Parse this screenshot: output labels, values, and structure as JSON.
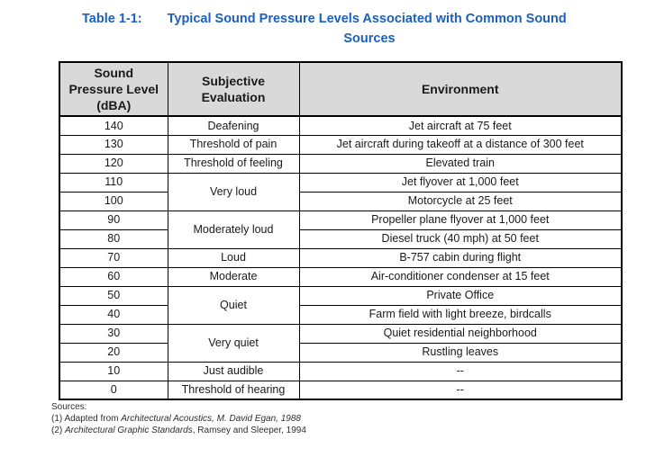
{
  "title": {
    "label": "Table 1-1:",
    "line1": "Typical Sound Pressure Levels Associated with Common Sound",
    "line2": "Sources"
  },
  "table": {
    "headers": [
      {
        "name": "sound-pressure-level",
        "lines": [
          "Sound",
          "Pressure Level",
          "(dBA)"
        ]
      },
      {
        "name": "subjective-evaluation",
        "lines": [
          "Subjective",
          "Evaluation"
        ]
      },
      {
        "name": "environment",
        "lines": [
          "Environment"
        ]
      }
    ],
    "rows": [
      {
        "dba": "140",
        "evaluation": "Deafening",
        "evaluation_rowspan": 1,
        "environment": "Jet aircraft at 75 feet"
      },
      {
        "dba": "130",
        "evaluation": "Threshold of pain",
        "evaluation_rowspan": 1,
        "environment": "Jet aircraft during takeoff at a distance of 300 feet"
      },
      {
        "dba": "120",
        "evaluation": "Threshold of feeling",
        "evaluation_rowspan": 1,
        "environment": "Elevated train"
      },
      {
        "dba": "110",
        "evaluation": "Very loud",
        "evaluation_rowspan": 2,
        "environment": "Jet flyover at 1,000 feet"
      },
      {
        "dba": "100",
        "evaluation": null,
        "environment": "Motorcycle at 25 feet"
      },
      {
        "dba": "90",
        "evaluation": "Moderately loud",
        "evaluation_rowspan": 2,
        "environment": "Propeller plane flyover at 1,000 feet"
      },
      {
        "dba": "80",
        "evaluation": null,
        "environment": "Diesel truck (40 mph) at 50 feet"
      },
      {
        "dba": "70",
        "evaluation": "Loud",
        "evaluation_rowspan": 1,
        "environment": "B-757 cabin during flight"
      },
      {
        "dba": "60",
        "evaluation": "Moderate",
        "evaluation_rowspan": 1,
        "environment": "Air-conditioner condenser at 15 feet"
      },
      {
        "dba": "50",
        "evaluation": "Quiet",
        "evaluation_rowspan": 2,
        "environment": "Private Office"
      },
      {
        "dba": "40",
        "evaluation": null,
        "environment": "Farm field with light breeze, birdcalls"
      },
      {
        "dba": "30",
        "evaluation": "Very quiet",
        "evaluation_rowspan": 2,
        "environment": "Quiet residential neighborhood"
      },
      {
        "dba": "20",
        "evaluation": null,
        "environment": "Rustling leaves"
      },
      {
        "dba": "10",
        "evaluation": "Just audible",
        "evaluation_rowspan": 1,
        "environment": "--"
      },
      {
        "dba": "0",
        "evaluation": "Threshold of hearing",
        "evaluation_rowspan": 1,
        "environment": "--"
      }
    ]
  },
  "sources": {
    "label": "Sources:",
    "items": [
      {
        "segments": [
          {
            "text": "(1) Adapted from ",
            "italic": false
          },
          {
            "text": "Architectural Acoustics, M. David Egan, 1988",
            "italic": true
          }
        ]
      },
      {
        "segments": [
          {
            "text": "(2) ",
            "italic": false
          },
          {
            "text": "Architectural Graphic Standards",
            "italic": true
          },
          {
            "text": ", Ramsey and Sleeper, 1994",
            "italic": false
          }
        ]
      }
    ]
  },
  "colors": {
    "title_blue": "#1B5FC1",
    "header_fill": "#D9D9D9",
    "border": "#000000",
    "text": "#1A1A1A"
  }
}
